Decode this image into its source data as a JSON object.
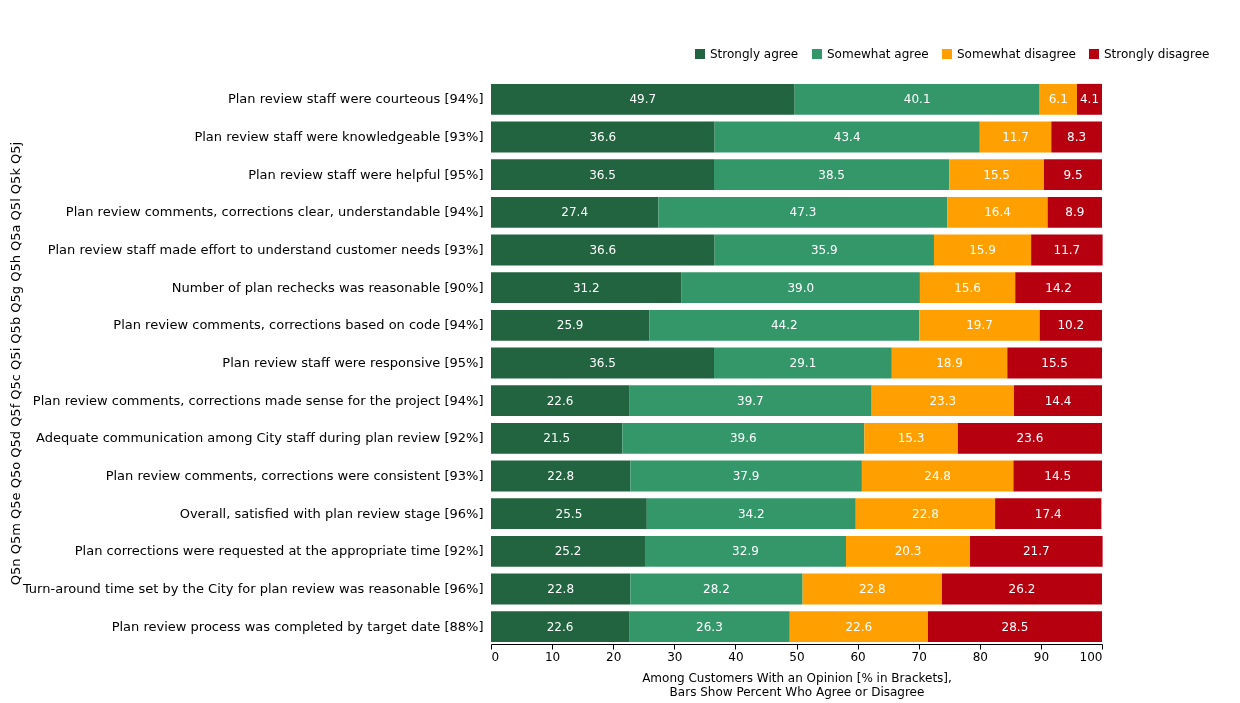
{
  "chart_data": {
    "type": "bar",
    "orientation": "horizontal",
    "stacked": true,
    "categories": [
      "Plan review staff were courteous [94%]",
      "Plan review  staff were knowledgeable [93%]",
      "Plan review staff were helpful [95%]",
      "Plan review comments, corrections clear, understandable [94%]",
      "Plan review staff made effort to understand customer needs [93%]",
      "Number of plan rechecks was reasonable [90%]",
      "Plan review comments, corrections based on code [94%]",
      "Plan review staff were responsive [95%]",
      "Plan review comments, corrections made sense for the project [94%]",
      "Adequate communication among City staff during plan review [92%]",
      "Plan review comments, corrections were consistent [93%]",
      "Overall, satisfied with plan review stage [96%]",
      "Plan corrections were requested at the appropriate time [92%]",
      "Turn-around time set by the City for plan review was reasonable [96%]",
      "Plan review process was completed by target date [88%]"
    ],
    "series": [
      {
        "name": "Strongly agree",
        "color": "#21643f",
        "values": [
          49.7,
          36.6,
          36.5,
          27.4,
          36.6,
          31.2,
          25.9,
          36.5,
          22.6,
          21.5,
          22.8,
          25.5,
          25.2,
          22.8,
          22.6
        ]
      },
      {
        "name": "Somewhat agree",
        "color": "#33976a",
        "values": [
          40.1,
          43.4,
          38.5,
          47.3,
          35.9,
          39.0,
          44.2,
          29.1,
          39.7,
          39.6,
          37.9,
          34.2,
          32.9,
          28.2,
          26.3
        ],
        "value_labels": [
          "40.1",
          "43.4",
          "38.5",
          "47.3",
          "35.9",
          "39.0",
          "44.2",
          "29.1",
          "39.7",
          "39.6",
          "37.9",
          "34.2",
          "32.9",
          "28.2",
          "26.3"
        ]
      },
      {
        "name": "Somewhat disagree",
        "color": "#ffa000",
        "values": [
          6.1,
          11.7,
          15.5,
          16.4,
          15.9,
          15.6,
          19.7,
          18.9,
          23.3,
          15.3,
          24.8,
          22.8,
          20.3,
          22.8,
          22.6
        ]
      },
      {
        "name": "Strongly disagree",
        "color": "#b7000f",
        "values": [
          4.1,
          8.3,
          9.5,
          8.9,
          11.7,
          14.2,
          10.2,
          15.5,
          14.4,
          23.6,
          14.5,
          17.4,
          21.7,
          26.2,
          28.5
        ]
      }
    ],
    "xlim": [
      0,
      100
    ],
    "xticks": [
      0,
      10,
      20,
      30,
      40,
      50,
      60,
      70,
      80,
      90,
      100
    ],
    "xlabel": "Among Customers With an Opinion [% in Brackets],\nBars Show Percent Who Agree or Disagree",
    "ylabel": "Q5n Q5m Q5e Q5o Q5d Q5f Q5c Q5i Q5b Q5g Q5h Q5a Q5l Q5k Q5j",
    "data_labels": true,
    "legend": "top right",
    "grid": false
  }
}
